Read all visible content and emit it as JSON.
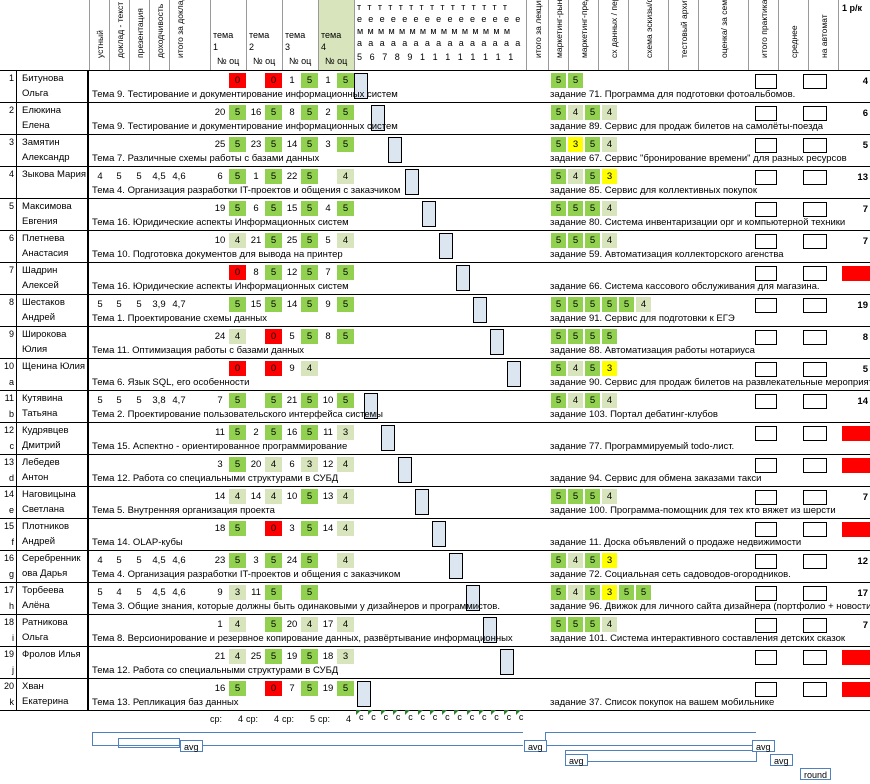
{
  "header": {
    "col_oral": "устный",
    "col_report": "доклад - текст",
    "col_presentation": "доклад",
    "col_presentation2": "презентация",
    "col_doh": "доходчивость",
    "col_total": "итого за доклад",
    "topic_cols": [
      {
        "title": "тема",
        "num": "1",
        "sub": "№ оц"
      },
      {
        "title": "тема",
        "num": "2",
        "sub": "№ оц"
      },
      {
        "title": "тема",
        "num": "3",
        "sub": "№ оц"
      },
      {
        "title": "тема",
        "num": "4",
        "sub": "№ оц"
      }
    ],
    "t_letters": "т т т т т т т т т т т т т т т",
    "e_letters": "е е е е е е е е е е е е е е е",
    "m_letters": "м м м м м м м м м м м м м м м",
    "a_letters": "а а а а а а а а а а а а а а а",
    "t_nums": [
      "5",
      "6",
      "7",
      "8",
      "9",
      "1",
      "1",
      "1",
      "1",
      "1",
      "1",
      "1",
      "1"
    ],
    "col_lec_total": "итого за лекции",
    "col_marketing": "маркетинг-рынок",
    "col_offers": "маркетинг-предложени е",
    "col_data": "сх данных / персонажи",
    "col_schema": "схема эскизы/форм",
    "col_test": "тестовый архитектура /",
    "col_grade": "оценка/ за семестр (по отчетам)",
    "col_total_practice": "итого практика",
    "col_avg": "среднее",
    "col_auto": "на автомат",
    "col_rk": "1 р/к"
  },
  "rows": [
    {
      "n": "1",
      "suffix": "",
      "name1": "Битунова",
      "name2": "Ольга",
      "oral": [],
      "t1": [
        "",
        "0"
      ],
      "t2": [
        "",
        "0"
      ],
      "t3": [
        "1",
        "5"
      ],
      "t4": [
        "1",
        "5"
      ],
      "topic": "Тема 9. Тестирование и документирование информационных систем",
      "m": [
        "5",
        "5"
      ],
      "task": "задание 71. Программа для подготовки фотоальбомов.",
      "rk": "4"
    },
    {
      "n": "2",
      "suffix": "",
      "name1": "Елюкина",
      "name2": "Елена",
      "oral": [],
      "t1": [
        "20",
        "5"
      ],
      "t2": [
        "16",
        "5"
      ],
      "t3": [
        "8",
        "5"
      ],
      "t4": [
        "2",
        "5"
      ],
      "topic": "Тема 9. Тестирование и документирование информационных систем",
      "m": [
        "5",
        "4",
        "5",
        "4"
      ],
      "task": "задание 89. Сервис для продаж билетов на самолёты-поезда",
      "rk": "6"
    },
    {
      "n": "3",
      "suffix": "",
      "name1": "Замятин",
      "name2": "Александр",
      "oral": [],
      "t1": [
        "25",
        "5"
      ],
      "t2": [
        "23",
        "5"
      ],
      "t3": [
        "14",
        "5"
      ],
      "t4": [
        "3",
        "5"
      ],
      "topic": "Тема 7. Различные схемы работы с базами данных",
      "m": [
        "5",
        "3",
        "5",
        "4"
      ],
      "task": "задание 67. Сервис \"бронирование времени\" для разных ресурсов",
      "rk": "5"
    },
    {
      "n": "4",
      "suffix": "",
      "name1": "Зыкова Мария",
      "name2": "",
      "oral": [
        "4",
        "5",
        "5",
        "4,5",
        "4,6"
      ],
      "t1": [
        "6",
        "5"
      ],
      "t2": [
        "1",
        "5"
      ],
      "t3": [
        "22",
        "5"
      ],
      "t4": [
        "",
        "4"
      ],
      "topic": "Тема 4. Организация разработки IT-проектов и общения с заказчиком",
      "m": [
        "5",
        "4",
        "5",
        "3"
      ],
      "task": "задание 85. Сервис для коллективных покупок",
      "rk": "13"
    },
    {
      "n": "5",
      "suffix": "",
      "name1": "Максимова",
      "name2": "Евгения",
      "oral": [],
      "t1": [
        "19",
        "5"
      ],
      "t2": [
        "6",
        "5"
      ],
      "t3": [
        "15",
        "5"
      ],
      "t4": [
        "4",
        "5"
      ],
      "topic": "Тема 16. Юридические аспекты Информационных систем",
      "m": [
        "5",
        "5",
        "5",
        "4"
      ],
      "task": "задание 80. Система инвентаризации орг и компьютерной техники",
      "rk": "7"
    },
    {
      "n": "6",
      "suffix": "",
      "name1": "Плетнева",
      "name2": "Анастасия",
      "oral": [],
      "t1": [
        "10",
        "4"
      ],
      "t2": [
        "21",
        "5"
      ],
      "t3": [
        "25",
        "5"
      ],
      "t4": [
        "5",
        "4"
      ],
      "topic": "Тема 10. Подготовка документов для вывода на принтер",
      "m": [
        "5",
        "5",
        "5",
        "4"
      ],
      "task": "задание 59. Автоматизация коллекторского агенства",
      "rk": "7"
    },
    {
      "n": "7",
      "suffix": "",
      "name1": "Шадрин",
      "name2": "Алексей",
      "oral": [],
      "t1": [
        "",
        "0"
      ],
      "t2": [
        "8",
        "5"
      ],
      "t3": [
        "12",
        "5"
      ],
      "t4": [
        "7",
        "5"
      ],
      "topic": "Тема 16. Юридические аспекты Информационных систем",
      "m": [],
      "task": "задание 66. Система кассового обслуживания для магазина.",
      "rk": "0"
    },
    {
      "n": "8",
      "suffix": "",
      "name1": "Шестаков",
      "name2": "Андрей",
      "oral": [
        "5",
        "5",
        "5",
        "3,9",
        "4,7"
      ],
      "t1": [
        "",
        "5"
      ],
      "t2": [
        "15",
        "5"
      ],
      "t3": [
        "14",
        "5"
      ],
      "t4": [
        "9",
        "5"
      ],
      "topic": "Тема 1. Проектирование схемы данных",
      "m": [
        "5",
        "5",
        "5",
        "5",
        "5",
        "4"
      ],
      "task": "задание 91. Сервис для подготовки к ЕГЭ",
      "rk": "19"
    },
    {
      "n": "9",
      "suffix": "",
      "name1": "Широкова",
      "name2": "Юлия",
      "oral": [],
      "t1": [
        "24",
        "4"
      ],
      "t2": [
        "",
        "0"
      ],
      "t3": [
        "5",
        "5"
      ],
      "t4": [
        "8",
        "5"
      ],
      "topic": "Тема 11. Оптимизация работы с базами данных",
      "m": [
        "5",
        "5",
        "5",
        "5"
      ],
      "task": "задание 88. Автоматизация работы нотариуса",
      "rk": "8"
    },
    {
      "n": "10",
      "suffix": "a",
      "name1": "Щенина Юлия",
      "name2": "",
      "oral": [],
      "t1": [
        "",
        "0"
      ],
      "t2": [
        "",
        "0"
      ],
      "t3": [
        "9",
        "4"
      ],
      "t4": [
        "",
        ""
      ],
      "topic": "Тема 6. Язык SQL, его особенности",
      "m": [
        "5",
        "4",
        "5",
        "3"
      ],
      "task": "задание 90. Сервис для продаж билетов на развлекательные мероприятия",
      "rk": "5"
    },
    {
      "n": "11",
      "suffix": "b",
      "name1": "Кутявина",
      "name2": "Татьяна",
      "oral": [
        "5",
        "5",
        "5",
        "3,8",
        "4,7"
      ],
      "t1": [
        "7",
        "5"
      ],
      "t2": [
        "",
        "5"
      ],
      "t3": [
        "21",
        "5"
      ],
      "t4": [
        "10",
        "5"
      ],
      "topic": "Тема 2. Проектирование пользовательского интерфейса системы",
      "m": [
        "5",
        "4",
        "5",
        "4"
      ],
      "task": "задание 103. Портал дебатинг-клубов",
      "rk": "14"
    },
    {
      "n": "12",
      "suffix": "c",
      "name1": "Кудрявцев",
      "name2": "Дмитрий",
      "oral": [],
      "t1": [
        "11",
        "5"
      ],
      "t2": [
        "2",
        "5"
      ],
      "t3": [
        "16",
        "5"
      ],
      "t4": [
        "11",
        "3"
      ],
      "topic": "Тема 15. Аспектно - ориентированное программирование",
      "m": [],
      "task": "задание 77. Программируемый todo-лист.",
      "rk": "0"
    },
    {
      "n": "13",
      "suffix": "d",
      "name1": "Лебедев",
      "name2": "Антон",
      "oral": [],
      "t1": [
        "3",
        "5"
      ],
      "t2": [
        "20",
        "4"
      ],
      "t3": [
        "6",
        "3"
      ],
      "t4": [
        "12",
        "4"
      ],
      "topic": "Тема 12. Работа со специальными структурами в СУБД",
      "m": [],
      "task": "задание 94. Сервис для обмена заказами такси",
      "rk": "0"
    },
    {
      "n": "14",
      "suffix": "e",
      "name1": "Наговицына",
      "name2": "Светлана",
      "oral": [],
      "t1": [
        "14",
        "4"
      ],
      "t2": [
        "14",
        "4"
      ],
      "t3": [
        "10",
        "5"
      ],
      "t4": [
        "13",
        "4"
      ],
      "topic": "Тема 5. Внутренняя организация проекта",
      "m": [
        "5",
        "5",
        "5",
        "4"
      ],
      "task": "задание 100. Программа-помощник для тех кто вяжет из шерсти",
      "rk": "7"
    },
    {
      "n": "15",
      "suffix": "f",
      "name1": "Плотников",
      "name2": "Андрей",
      "oral": [],
      "t1": [
        "18",
        "5"
      ],
      "t2": [
        "",
        "0"
      ],
      "t3": [
        "3",
        "5"
      ],
      "t4": [
        "14",
        "4"
      ],
      "topic": "Тема 14. OLAP-кубы",
      "m": [],
      "task": "задание 11. Доска объявлений о продаже недвижимости",
      "rk": "0"
    },
    {
      "n": "16",
      "suffix": "g",
      "name1": "Серебренник",
      "name2": "ова Дарья",
      "oral": [
        "4",
        "5",
        "5",
        "4,5",
        "4,6"
      ],
      "t1": [
        "23",
        "5"
      ],
      "t2": [
        "3",
        "5"
      ],
      "t3": [
        "24",
        "5"
      ],
      "t4": [
        "",
        "4"
      ],
      "topic": "Тема 4. Организация разработки IT-проектов и общения с заказчиком",
      "m": [
        "5",
        "4",
        "5",
        "3"
      ],
      "task": "задание 72. Социальная сеть садоводов-огородников.",
      "rk": "12"
    },
    {
      "n": "17",
      "suffix": "h",
      "name1": "Торбеева",
      "name2": "Алёна",
      "oral": [
        "5",
        "4",
        "5",
        "4,5",
        "4,6"
      ],
      "t1": [
        "9",
        "3"
      ],
      "t2": [
        "11",
        "5"
      ],
      "t3": [
        "",
        "5"
      ],
      "t4": [
        "",
        ""
      ],
      "topic": "Тема 3. Общие знания, которые должны быть одинаковыми у дизайнеров и программистов.",
      "m": [
        "5",
        "4",
        "5",
        "3",
        "5",
        "5"
      ],
      "task": "задание 96. Движок для личного сайта дизайнера (портфолио + новости)",
      "rk": "17"
    },
    {
      "n": "18",
      "suffix": "i",
      "name1": "Ратникова",
      "name2": "Ольга",
      "oral": [],
      "t1": [
        "1",
        "4"
      ],
      "t2": [
        "",
        "5"
      ],
      "t3": [
        "20",
        "4"
      ],
      "t4": [
        "17",
        "4"
      ],
      "topic": "Тема 8. Версионирование и резервное копирование данных, развёртывание информационных",
      "m": [
        "5",
        "5",
        "5",
        "4"
      ],
      "task": "задание 101. Система интерактивного составления детских сказок",
      "rk": "7"
    },
    {
      "n": "19",
      "suffix": "j",
      "name1": "Фролов Илья",
      "name2": "",
      "oral": [],
      "t1": [
        "21",
        "4"
      ],
      "t2": [
        "25",
        "5"
      ],
      "t3": [
        "19",
        "5"
      ],
      "t4": [
        "18",
        "3"
      ],
      "topic": "Тема 12. Работа со специальными структурами в СУБД",
      "m": [],
      "task": "",
      "rk": "0"
    },
    {
      "n": "20",
      "suffix": "k",
      "name1": "Хван",
      "name2": "Екатерина",
      "oral": [],
      "t1": [
        "16",
        "5"
      ],
      "t2": [
        "",
        "0"
      ],
      "t3": [
        "7",
        "5"
      ],
      "t4": [
        "19",
        "5"
      ],
      "topic": "Тема 13. Репликация баз данных",
      "m": [],
      "task": "задание 37. Список покупок на вашем мобильнике",
      "rk": "0"
    }
  ],
  "footer": {
    "sr_labels": [
      "ср:",
      "ср:",
      "ср:",
      "ср:"
    ],
    "sr_values": [
      "4",
      "4",
      "5",
      "4"
    ],
    "c_letters": [
      "с",
      "с",
      "с",
      "с",
      "с",
      "с",
      "с",
      "с",
      "с",
      "с",
      "с",
      "с",
      "с",
      "с"
    ],
    "avg_labels": [
      "avg",
      "avg",
      "avg",
      "avg",
      "avg",
      "avg"
    ],
    "round_label": "round"
  },
  "colors": {
    "green": "#92d050",
    "red": "#ff0000",
    "yellow": "#ffff00",
    "light_blue": "#dce6f1"
  }
}
